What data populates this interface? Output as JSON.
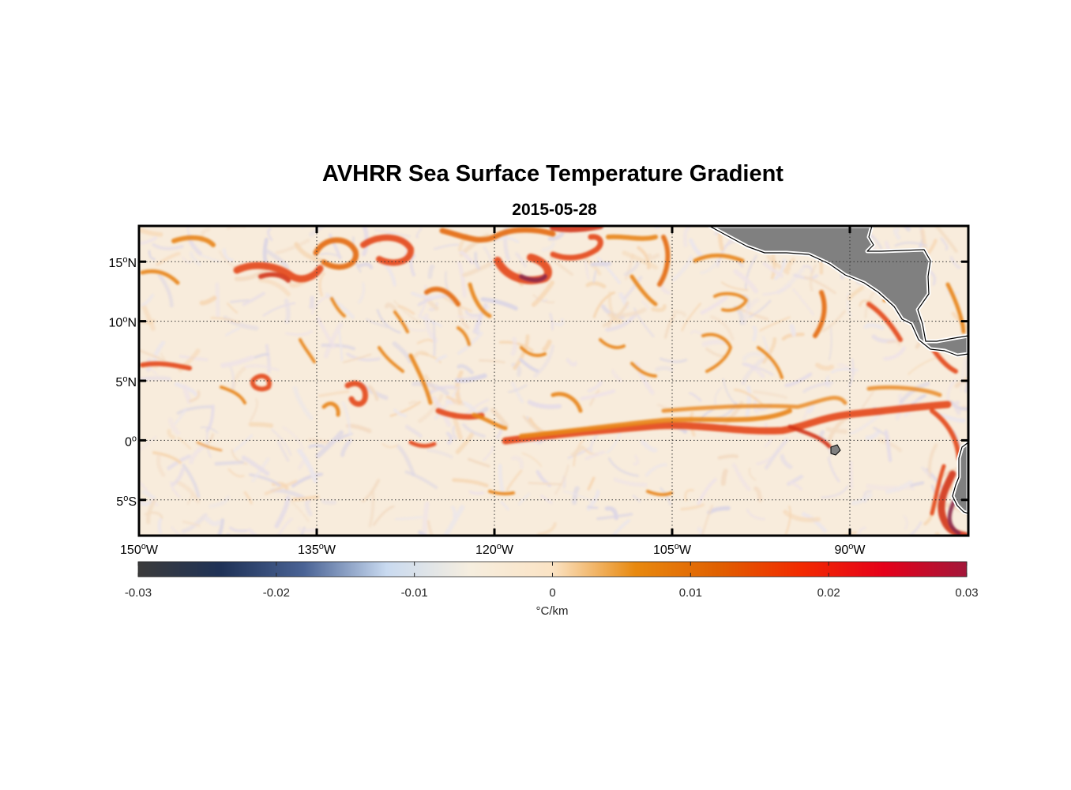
{
  "title": "AVHRR Sea Surface Temperature Gradient",
  "subtitle": "2015-05-28",
  "chart_data": {
    "type": "heatmap",
    "title": "AVHRR Sea Surface Temperature Gradient",
    "subtitle": "2015-05-28",
    "lon_range": [
      -150,
      -80
    ],
    "lat_range": [
      -8,
      18
    ],
    "lat_ticks": [
      {
        "value": 15,
        "num": "15",
        "hemi": "N"
      },
      {
        "value": 10,
        "num": "10",
        "hemi": "N"
      },
      {
        "value": 5,
        "num": "5",
        "hemi": "N"
      },
      {
        "value": 0,
        "num": "0",
        "hemi": ""
      },
      {
        "value": -5,
        "num": "5",
        "hemi": "S"
      }
    ],
    "lon_ticks": [
      {
        "value": -150,
        "num": "150",
        "hemi": "W"
      },
      {
        "value": -135,
        "num": "135",
        "hemi": "W"
      },
      {
        "value": -120,
        "num": "120",
        "hemi": "W"
      },
      {
        "value": -105,
        "num": "105",
        "hemi": "W"
      },
      {
        "value": -90,
        "num": "90",
        "hemi": "W"
      }
    ],
    "grid": "dotted",
    "colorbar": {
      "min": -0.03,
      "max": 0.03,
      "ticks": [
        -0.03,
        -0.02,
        -0.01,
        0,
        0.01,
        0.02,
        0.03
      ],
      "tick_labels": [
        "-0.03",
        "-0.02",
        "-0.01",
        "0",
        "0.01",
        "0.02",
        "0.03"
      ],
      "unit": "°C/km",
      "colors": [
        "#3b3b3b",
        "#1f3257",
        "#4a6395",
        "#c9daf0",
        "#f6eedf",
        "#fbe3c4",
        "#e8890f",
        "#e06000",
        "#f22a00",
        "#e5001a",
        "#a3173a"
      ]
    },
    "land_color": "#808080"
  }
}
